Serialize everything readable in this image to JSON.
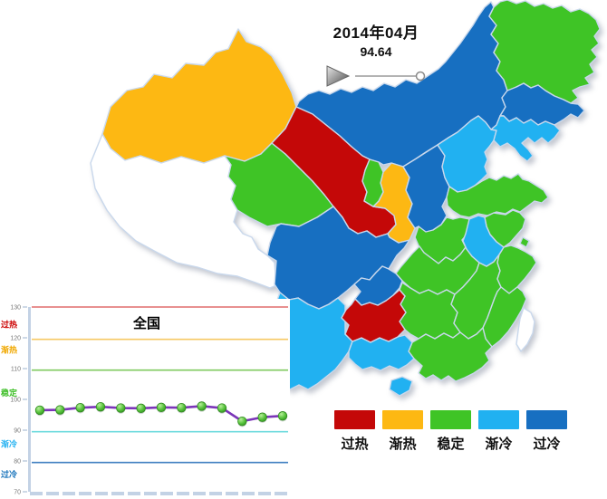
{
  "timeline": {
    "date_label": "2014年04月",
    "value": "94.64",
    "play_icon": "play-triangle",
    "slider_position": "end"
  },
  "legend": {
    "items": [
      {
        "key": "guore",
        "label": "过热",
        "color": "#c40808"
      },
      {
        "key": "jianre",
        "label": "渐热",
        "color": "#fdb813"
      },
      {
        "key": "wending",
        "label": "稳定",
        "color": "#3fc426"
      },
      {
        "key": "jianleng",
        "label": "渐冷",
        "color": "#21b1f1"
      },
      {
        "key": "guoleng",
        "label": "过冷",
        "color": "#176fc1"
      }
    ],
    "no_data_color": "#ffffff"
  },
  "map": {
    "regions": [
      {
        "id": "xinjiang",
        "category": "jianre"
      },
      {
        "id": "xizang",
        "category": "nodata"
      },
      {
        "id": "qinghai",
        "category": "wending"
      },
      {
        "id": "gansu",
        "category": "guore"
      },
      {
        "id": "ningxia",
        "category": "wending"
      },
      {
        "id": "shaanxi",
        "category": "jianre"
      },
      {
        "id": "neimenggu",
        "category": "guoleng"
      },
      {
        "id": "heilongjiang",
        "category": "wending"
      },
      {
        "id": "jilin",
        "category": "guoleng"
      },
      {
        "id": "liaoning",
        "category": "jianleng"
      },
      {
        "id": "hebei",
        "category": "jianleng"
      },
      {
        "id": "beijing",
        "category": "guoleng"
      },
      {
        "id": "tianjin",
        "category": "jianleng"
      },
      {
        "id": "shanxi",
        "category": "guoleng"
      },
      {
        "id": "shandong",
        "category": "wending"
      },
      {
        "id": "henan",
        "category": "wending"
      },
      {
        "id": "jiangsu",
        "category": "wending"
      },
      {
        "id": "anhui",
        "category": "jianleng"
      },
      {
        "id": "shanghai",
        "category": "wending"
      },
      {
        "id": "zhejiang",
        "category": "wending"
      },
      {
        "id": "hubei",
        "category": "wending"
      },
      {
        "id": "chongqing",
        "category": "guoleng"
      },
      {
        "id": "sichuan",
        "category": "guoleng"
      },
      {
        "id": "guizhou",
        "category": "guore"
      },
      {
        "id": "yunnan",
        "category": "jianleng"
      },
      {
        "id": "hunan",
        "category": "wending"
      },
      {
        "id": "jiangxi",
        "category": "wending"
      },
      {
        "id": "fujian",
        "category": "wending"
      },
      {
        "id": "guangxi",
        "category": "jianleng"
      },
      {
        "id": "guangdong",
        "category": "wending"
      },
      {
        "id": "hainan",
        "category": "jianleng"
      },
      {
        "id": "taiwan",
        "category": "nodata"
      }
    ]
  },
  "chart_data": {
    "type": "line",
    "title": "全国",
    "x_count": 13,
    "values": [
      96.5,
      96.6,
      97.3,
      97.6,
      97.2,
      97.1,
      97.4,
      97.3,
      97.8,
      97.2,
      92.9,
      94.2,
      94.64
    ],
    "ylim": [
      70,
      130
    ],
    "yticks": [
      130,
      120,
      110,
      100,
      90,
      80,
      70
    ],
    "bands": [
      {
        "label": "过热",
        "line_value": 130,
        "line_color": "#e06c6c",
        "label_color": "#cc0000",
        "label_value": 124.3
      },
      {
        "label": "渐热",
        "line_value": 119.5,
        "line_color": "#f6c863",
        "label_color": "#f0a800",
        "label_value": 116.0
      },
      {
        "label": "稳定",
        "line_value": 109.5,
        "line_color": "#7fca5f",
        "label_color": "#3fbf28",
        "label_value": 102.0
      },
      {
        "label": "渐冷",
        "line_value": 89.5,
        "line_color": "#6fdbde",
        "label_color": "#29b3f1",
        "label_value": 85.4
      },
      {
        "label": "过冷",
        "line_value": 79.5,
        "line_color": "#3f7fc1",
        "label_color": "#1b75bc",
        "label_value": 75.6
      }
    ],
    "line_color": "#7b35b8",
    "marker_fill": "#55c13a",
    "marker_stroke": "#2e8a1e",
    "axis_color": "#c3d2e5",
    "grid": false,
    "legend_position": "none"
  }
}
